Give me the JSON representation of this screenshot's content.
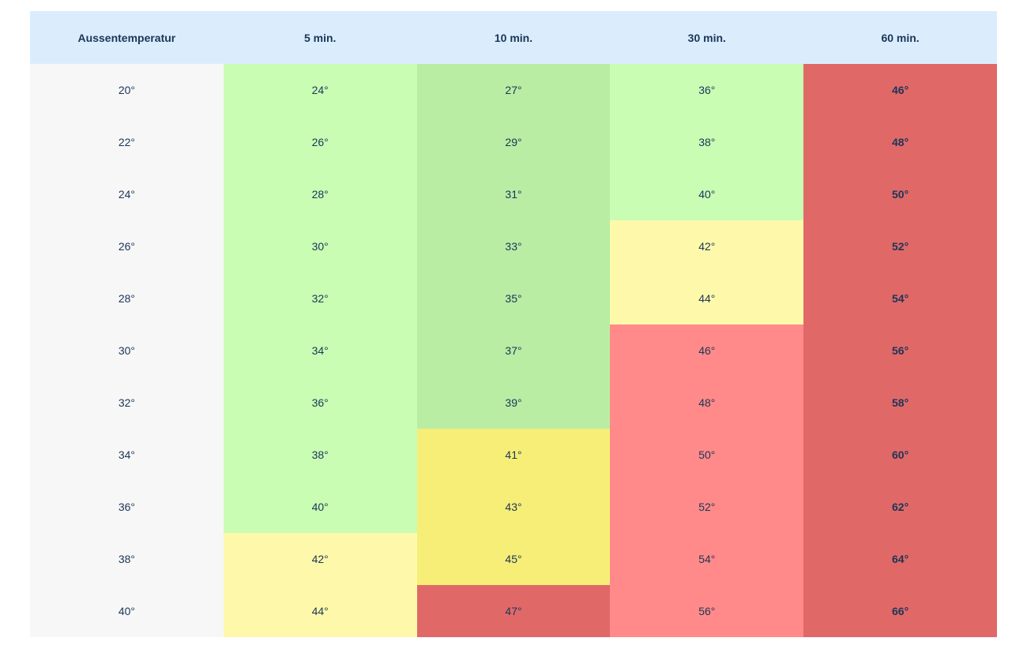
{
  "table": {
    "header": [
      "Aussentemperatur",
      "5 min.",
      "10 min.",
      "30 min.",
      "60 min."
    ],
    "header_color": "#dbedfd",
    "rows": [
      [
        "20°",
        "24°",
        "27°",
        "36°",
        "46°"
      ],
      [
        "22°",
        "26°",
        "29°",
        "38°",
        "48°"
      ],
      [
        "24°",
        "28°",
        "31°",
        "40°",
        "50°"
      ],
      [
        "26°",
        "30°",
        "33°",
        "42°",
        "52°"
      ],
      [
        "28°",
        "32°",
        "35°",
        "44°",
        "54°"
      ],
      [
        "30°",
        "34°",
        "37°",
        "46°",
        "56°"
      ],
      [
        "32°",
        "36°",
        "39°",
        "48°",
        "58°"
      ],
      [
        "34°",
        "38°",
        "41°",
        "50°",
        "60°"
      ],
      [
        "36°",
        "40°",
        "43°",
        "52°",
        "62°"
      ],
      [
        "38°",
        "42°",
        "45°",
        "54°",
        "64°"
      ],
      [
        "40°",
        "44°",
        "47°",
        "56°",
        "66°"
      ]
    ],
    "cell_colors": [
      [
        "#f7f7f7",
        "#c9fdb4",
        "#b9eda4",
        "#c9fdb4",
        "#e06968"
      ],
      [
        "#f7f7f7",
        "#c9fdb4",
        "#b9eda4",
        "#c9fdb4",
        "#e06968"
      ],
      [
        "#f7f7f7",
        "#c9fdb4",
        "#b9eda4",
        "#c9fdb4",
        "#e06968"
      ],
      [
        "#f7f7f7",
        "#c9fdb4",
        "#b9eda4",
        "#fef9aa",
        "#e06968"
      ],
      [
        "#f7f7f7",
        "#c9fdb4",
        "#b9eda4",
        "#fef9aa",
        "#e06968"
      ],
      [
        "#f7f7f7",
        "#c9fdb4",
        "#b9eda4",
        "#ff8a89",
        "#e06968"
      ],
      [
        "#f7f7f7",
        "#c9fdb4",
        "#b9eda4",
        "#ff8a89",
        "#e06968"
      ],
      [
        "#f7f7f7",
        "#c9fdb4",
        "#f6ee77",
        "#ff8a89",
        "#e06968"
      ],
      [
        "#f7f7f7",
        "#c9fdb4",
        "#f6ee77",
        "#ff8a89",
        "#e06968"
      ],
      [
        "#f7f7f7",
        "#fef9aa",
        "#f6ee77",
        "#ff8a89",
        "#e06968"
      ],
      [
        "#f7f7f7",
        "#fef9aa",
        "#e06968",
        "#ff8a89",
        "#e06968"
      ]
    ]
  }
}
